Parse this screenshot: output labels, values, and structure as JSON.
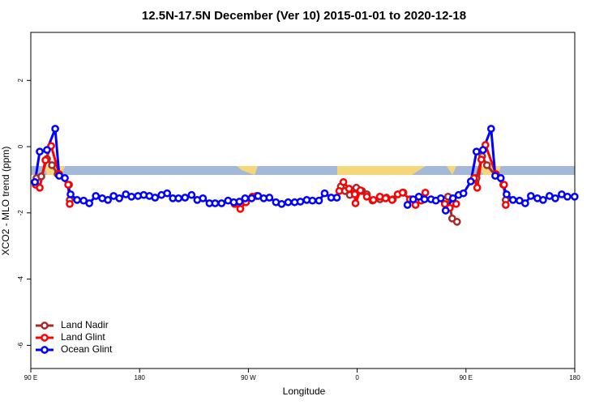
{
  "chart_data": {
    "type": "line",
    "title": "12.5N-17.5N December (Ver 10)   2015-01-01 to 2020-12-18",
    "x_label": "Longitude",
    "y_label": "XCO2 - MLO trend (ppm)",
    "xlim": [
      90,
      540
    ],
    "xticks": [
      {
        "value": 90,
        "label": "90 E"
      },
      {
        "value": 180,
        "label": "180"
      },
      {
        "value": 270,
        "label": "90 W"
      },
      {
        "value": 360,
        "label": "0"
      },
      {
        "value": 450,
        "label": "90 E"
      },
      {
        "value": 540,
        "label": "180"
      }
    ],
    "ylim": [
      -6.7,
      3.45
    ],
    "yticks": [
      2,
      0,
      -2,
      -4,
      -6
    ],
    "legend": "bottom-left",
    "series": [
      {
        "name": "Land Nadir",
        "color": "#a52a2a",
        "x": [
          94.7,
          98.7,
          103.4,
          107.5,
          112.2,
          121.6,
          122.2,
          200,
          346.5,
          349.9,
          353.9,
          359.3,
          364.0,
          368.0,
          372.7,
          378.8,
          384.2,
          389.5,
          393.6,
          398.3,
          420,
          435.2,
          438.6,
          442.6,
          450,
          458.7,
          463.4,
          467.4,
          480.9,
          482.9
        ],
        "values": [
          -0.95,
          -0.9,
          -0.37,
          -0.56,
          -0.83,
          -1.15,
          -1.61,
          null,
          -1.2,
          -1.34,
          -1.46,
          -1.24,
          -1.34,
          -1.44,
          -1.63,
          -1.59,
          -1.54,
          -1.59,
          -1.44,
          -1.39,
          null,
          -1.51,
          -2.17,
          -2.27,
          null,
          -0.95,
          -0.29,
          -0.56,
          -1.15,
          -1.61
        ]
      },
      {
        "name": "Land Glint",
        "color": "#ff0000",
        "x": [
          94.0,
          97.4,
          102.1,
          106.8,
          113.5,
          120.9,
          122.2,
          200,
          258.6,
          263.3,
          268.0,
          273.3,
          276.7,
          310,
          345.2,
          348.6,
          353.3,
          358.0,
          358.6,
          362.7,
          368.0,
          373.4,
          378.8,
          383.5,
          388.9,
          393.6,
          397.6,
          403.7,
          408.3,
          413.0,
          416.4,
          425,
          432.5,
          436.6,
          441.9,
          450,
          456.7,
          459.3,
          462.7,
          466.1,
          474.8,
          481.5,
          482.9
        ],
        "values": [
          -1.15,
          -1.24,
          -0.41,
          0.02,
          -0.83,
          -1.15,
          -1.73,
          null,
          -1.73,
          -1.88,
          -1.68,
          -1.51,
          -1.49,
          null,
          -1.34,
          -1.07,
          -1.27,
          -1.44,
          -1.71,
          -1.32,
          -1.51,
          -1.61,
          -1.51,
          -1.56,
          -1.61,
          -1.44,
          -1.39,
          -1.59,
          -1.76,
          -1.63,
          -1.39,
          null,
          -1.73,
          -1.85,
          -1.73,
          null,
          -0.95,
          -1.24,
          -0.39,
          0.05,
          -0.83,
          -1.15,
          -1.76
        ]
      },
      {
        "name": "Ocean Glint",
        "color": "#0000ff",
        "x": [
          93.4,
          97.4,
          103.4,
          110.2,
          113.5,
          118.2,
          122.9,
          128.3,
          133.7,
          138.4,
          143.8,
          149.1,
          153.8,
          158.5,
          163.2,
          168.6,
          173.3,
          178.7,
          183.4,
          188.1,
          192.8,
          198.1,
          202.8,
          207.5,
          212.2,
          217.6,
          223.0,
          227.7,
          232.4,
          237.8,
          242.5,
          247.8,
          253.2,
          257.9,
          262.6,
          267.3,
          272.7,
          278.0,
          282.7,
          287.4,
          292.8,
          297.5,
          302.9,
          308.3,
          313.0,
          318.3,
          323.0,
          328.4,
          333.1,
          338.5,
          343.2,
          370,
          401.6,
          406.3,
          411.0,
          415.7,
          421.1,
          425.1,
          429.2,
          433.2,
          439.2,
          443.9,
          447.9,
          454.0,
          458.7,
          464.1,
          470.8,
          474.2,
          478.8,
          483.6,
          488.9,
          494.3,
          499.0,
          503.7,
          509.1,
          513.8,
          519.1,
          523.9,
          529.2,
          533.9,
          539.9
        ],
        "values": [
          -1.07,
          -0.15,
          -0.1,
          0.54,
          -0.88,
          -0.95,
          -1.44,
          -1.61,
          -1.63,
          -1.71,
          -1.49,
          -1.56,
          -1.61,
          -1.49,
          -1.56,
          -1.44,
          -1.51,
          -1.49,
          -1.46,
          -1.49,
          -1.54,
          -1.46,
          -1.41,
          -1.56,
          -1.56,
          -1.54,
          -1.46,
          -1.61,
          -1.56,
          -1.71,
          -1.71,
          -1.71,
          -1.63,
          -1.68,
          -1.66,
          -1.56,
          -1.56,
          -1.49,
          -1.56,
          -1.54,
          -1.68,
          -1.73,
          -1.68,
          -1.68,
          -1.66,
          -1.61,
          -1.63,
          -1.63,
          -1.41,
          -1.54,
          -1.54,
          null,
          -1.76,
          -1.59,
          -1.51,
          -1.59,
          -1.59,
          -1.63,
          -1.56,
          -1.93,
          -1.56,
          -1.46,
          -1.41,
          -1.05,
          -0.15,
          -0.1,
          0.54,
          -0.88,
          -0.95,
          -1.44,
          -1.61,
          -1.63,
          -1.71,
          -1.49,
          -1.56,
          -1.61,
          -1.49,
          -1.56,
          -1.44,
          -1.51,
          -1.51
        ]
      }
    ]
  }
}
